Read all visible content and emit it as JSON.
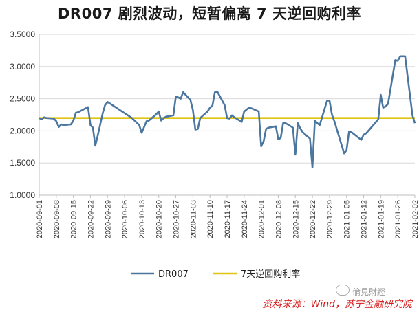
{
  "chart_data": {
    "type": "line",
    "title": "DR007 剧烈波动，短暂偏离 7 天逆回购利率",
    "ylim": [
      1.0,
      3.5
    ],
    "yticks": [
      "1.0000",
      "1.5000",
      "2.0000",
      "2.5000",
      "3.0000",
      "3.5000"
    ],
    "xticks": [
      "2020-09-01",
      "2020-09-08",
      "2020-09-15",
      "2020-09-22",
      "2020-09-29",
      "2020-10-06",
      "2020-10-13",
      "2020-10-20",
      "2020-10-27",
      "2020-11-03",
      "2020-11-10",
      "2020-11-17",
      "2020-11-24",
      "2020-12-01",
      "2020-12-08",
      "2020-12-15",
      "2020-12-22",
      "2020-12-29",
      "2021-01-05",
      "2021-01-12",
      "2021-01-19",
      "2021-01-26",
      "2021-02-02"
    ],
    "legend_position": "bottom",
    "colors": {
      "dr007": "#4a76a0",
      "repo": "#e0c312"
    },
    "series": [
      {
        "name": "DR007",
        "values": [
          [
            "2020-09-01",
            2.2
          ],
          [
            "2020-09-02",
            2.18
          ],
          [
            "2020-09-03",
            2.21
          ],
          [
            "2020-09-04",
            2.2
          ],
          [
            "2020-09-07",
            2.19
          ],
          [
            "2020-09-08",
            2.15
          ],
          [
            "2020-09-09",
            2.06
          ],
          [
            "2020-09-10",
            2.1
          ],
          [
            "2020-09-11",
            2.09
          ],
          [
            "2020-09-14",
            2.1
          ],
          [
            "2020-09-15",
            2.16
          ],
          [
            "2020-09-16",
            2.28
          ],
          [
            "2020-09-17",
            2.29
          ],
          [
            "2020-09-18",
            2.31
          ],
          [
            "2020-09-21",
            2.37
          ],
          [
            "2020-09-22",
            2.09
          ],
          [
            "2020-09-23",
            2.05
          ],
          [
            "2020-09-24",
            1.77
          ],
          [
            "2020-09-25",
            1.93
          ],
          [
            "2020-09-27",
            2.27
          ],
          [
            "2020-09-28",
            2.4
          ],
          [
            "2020-09-29",
            2.45
          ],
          [
            "2020-10-09",
            2.2
          ],
          [
            "2020-10-12",
            2.09
          ],
          [
            "2020-10-13",
            1.97
          ],
          [
            "2020-10-14",
            2.06
          ],
          [
            "2020-10-15",
            2.15
          ],
          [
            "2020-10-16",
            2.16
          ],
          [
            "2020-10-19",
            2.26
          ],
          [
            "2020-10-20",
            2.3
          ],
          [
            "2020-10-21",
            2.16
          ],
          [
            "2020-10-22",
            2.2
          ],
          [
            "2020-10-23",
            2.22
          ],
          [
            "2020-10-26",
            2.24
          ],
          [
            "2020-10-27",
            2.53
          ],
          [
            "2020-10-28",
            2.52
          ],
          [
            "2020-10-29",
            2.5
          ],
          [
            "2020-10-30",
            2.6
          ],
          [
            "2020-11-02",
            2.48
          ],
          [
            "2020-11-03",
            2.32
          ],
          [
            "2020-11-04",
            2.02
          ],
          [
            "2020-11-05",
            2.03
          ],
          [
            "2020-11-06",
            2.2
          ],
          [
            "2020-11-09",
            2.3
          ],
          [
            "2020-11-10",
            2.36
          ],
          [
            "2020-11-11",
            2.39
          ],
          [
            "2020-11-12",
            2.6
          ],
          [
            "2020-11-13",
            2.61
          ],
          [
            "2020-11-16",
            2.4
          ],
          [
            "2020-11-17",
            2.2
          ],
          [
            "2020-11-18",
            2.19
          ],
          [
            "2020-11-19",
            2.24
          ],
          [
            "2020-11-20",
            2.21
          ],
          [
            "2020-11-23",
            2.14
          ],
          [
            "2020-11-24",
            2.3
          ],
          [
            "2020-11-25",
            2.33
          ],
          [
            "2020-11-26",
            2.36
          ],
          [
            "2020-11-27",
            2.35
          ],
          [
            "2020-11-30",
            2.3
          ],
          [
            "2020-12-01",
            1.76
          ],
          [
            "2020-12-02",
            1.84
          ],
          [
            "2020-12-03",
            2.03
          ],
          [
            "2020-12-04",
            2.05
          ],
          [
            "2020-12-07",
            2.07
          ],
          [
            "2020-12-08",
            1.87
          ],
          [
            "2020-12-09",
            1.89
          ],
          [
            "2020-12-10",
            2.12
          ],
          [
            "2020-12-11",
            2.12
          ],
          [
            "2020-12-14",
            2.05
          ],
          [
            "2020-12-15",
            1.63
          ],
          [
            "2020-12-16",
            2.12
          ],
          [
            "2020-12-17",
            2.04
          ],
          [
            "2020-12-18",
            1.98
          ],
          [
            "2020-12-21",
            1.88
          ],
          [
            "2020-12-22",
            1.43
          ],
          [
            "2020-12-23",
            2.16
          ],
          [
            "2020-12-24",
            2.12
          ],
          [
            "2020-12-25",
            2.09
          ],
          [
            "2020-12-28",
            2.47
          ],
          [
            "2020-12-29",
            2.47
          ],
          [
            "2020-12-30",
            2.25
          ],
          [
            "2020-12-31",
            2.15
          ],
          [
            "2021-01-04",
            1.65
          ],
          [
            "2021-01-05",
            1.7
          ],
          [
            "2021-01-06",
            1.99
          ],
          [
            "2021-01-07",
            1.98
          ],
          [
            "2021-01-08",
            1.95
          ],
          [
            "2021-01-11",
            1.86
          ],
          [
            "2021-01-12",
            1.94
          ],
          [
            "2021-01-13",
            1.96
          ],
          [
            "2021-01-18",
            2.18
          ],
          [
            "2021-01-19",
            2.56
          ],
          [
            "2021-01-20",
            2.36
          ],
          [
            "2021-01-21",
            2.38
          ],
          [
            "2021-01-22",
            2.42
          ],
          [
            "2021-01-25",
            3.1
          ],
          [
            "2021-01-26",
            3.09
          ],
          [
            "2021-01-27",
            3.16
          ],
          [
            "2021-01-28",
            3.16
          ],
          [
            "2021-01-29",
            3.16
          ],
          [
            "2021-02-01",
            2.24
          ],
          [
            "2021-02-02",
            2.12
          ]
        ]
      },
      {
        "name": "7天逆回购利率",
        "values": [
          [
            "2020-09-01",
            2.2
          ],
          [
            "2021-02-02",
            2.2
          ]
        ]
      }
    ],
    "source": "资料来源：Wind，苏宁金融研究院"
  },
  "watermark": "倫見財經"
}
